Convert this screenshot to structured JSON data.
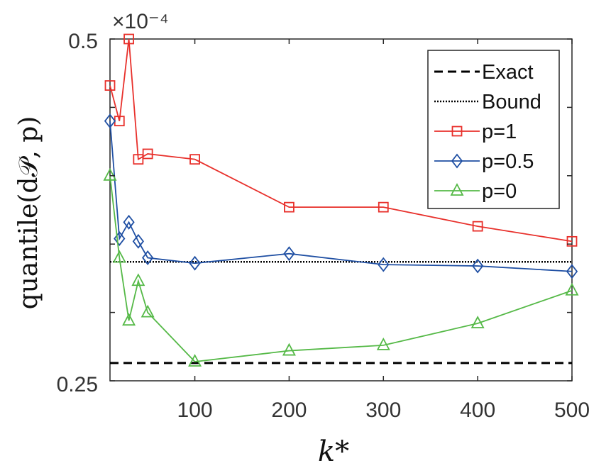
{
  "chart_data": {
    "type": "line",
    "title": "",
    "xlabel": "k*",
    "ylabel": "quantile(d𝒫, p)",
    "y_multiplier": "×10⁻⁴",
    "xlim": [
      10,
      500
    ],
    "ylim": [
      0.25,
      0.5
    ],
    "x_ticks": [
      100,
      200,
      300,
      400,
      500
    ],
    "x_tick_labels": [
      "100",
      "200",
      "300",
      "400",
      "500"
    ],
    "y_tick_labels": [
      "0.25",
      "0.5"
    ],
    "grid": false,
    "legend_position": "top-right",
    "reference_lines": [
      {
        "name": "Exact",
        "y": 0.263,
        "style": "dashed",
        "color": "#000000"
      },
      {
        "name": "Bound",
        "y": 0.337,
        "style": "dotted",
        "color": "#000000"
      }
    ],
    "series": [
      {
        "name": "p=1",
        "color": "#e8302b",
        "marker": "square",
        "x": [
          10,
          20,
          30,
          40,
          50,
          100,
          200,
          300,
          400,
          500
        ],
        "y": [
          0.466,
          0.44,
          0.5,
          0.412,
          0.416,
          0.412,
          0.377,
          0.377,
          0.363,
          0.352
        ]
      },
      {
        "name": "p=0.5",
        "color": "#1f4fa3",
        "marker": "diamond",
        "x": [
          10,
          20,
          30,
          40,
          50,
          100,
          200,
          300,
          400,
          500
        ],
        "y": [
          0.44,
          0.354,
          0.366,
          0.352,
          0.34,
          0.336,
          0.343,
          0.335,
          0.334,
          0.33
        ]
      },
      {
        "name": "p=0",
        "color": "#55b947",
        "marker": "triangle",
        "x": [
          10,
          20,
          30,
          40,
          50,
          100,
          200,
          300,
          400,
          500
        ],
        "y": [
          0.4,
          0.34,
          0.294,
          0.323,
          0.3,
          0.264,
          0.272,
          0.276,
          0.292,
          0.316
        ]
      }
    ]
  }
}
